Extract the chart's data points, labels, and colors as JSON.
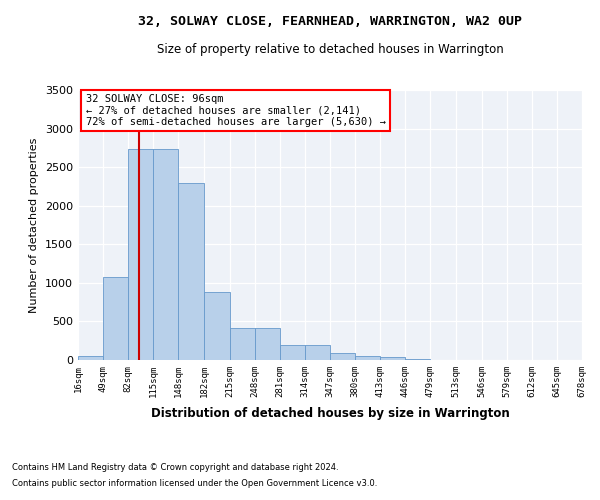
{
  "title": "32, SOLWAY CLOSE, FEARNHEAD, WARRINGTON, WA2 0UP",
  "subtitle": "Size of property relative to detached houses in Warrington",
  "xlabel": "Distribution of detached houses by size in Warrington",
  "ylabel": "Number of detached properties",
  "footer_line1": "Contains HM Land Registry data © Crown copyright and database right 2024.",
  "footer_line2": "Contains public sector information licensed under the Open Government Licence v3.0.",
  "annotation_title": "32 SOLWAY CLOSE: 96sqm",
  "annotation_line1": "← 27% of detached houses are smaller (2,141)",
  "annotation_line2": "72% of semi-detached houses are larger (5,630) →",
  "property_size": 96,
  "bin_edges": [
    16,
    49,
    82,
    115,
    148,
    182,
    215,
    248,
    281,
    314,
    347,
    380,
    413,
    446,
    479,
    513,
    546,
    579,
    612,
    645,
    678
  ],
  "bar_heights": [
    50,
    1080,
    2730,
    2730,
    2300,
    880,
    420,
    420,
    200,
    200,
    90,
    55,
    40,
    15,
    5,
    2,
    1,
    1,
    0,
    0
  ],
  "bar_color": "#b8d0ea",
  "bar_edge_color": "#6699cc",
  "red_line_color": "#cc0000",
  "background_color": "#eef2f8",
  "grid_color": "#ffffff",
  "ylim": [
    0,
    3500
  ],
  "yticks": [
    0,
    500,
    1000,
    1500,
    2000,
    2500,
    3000,
    3500
  ]
}
